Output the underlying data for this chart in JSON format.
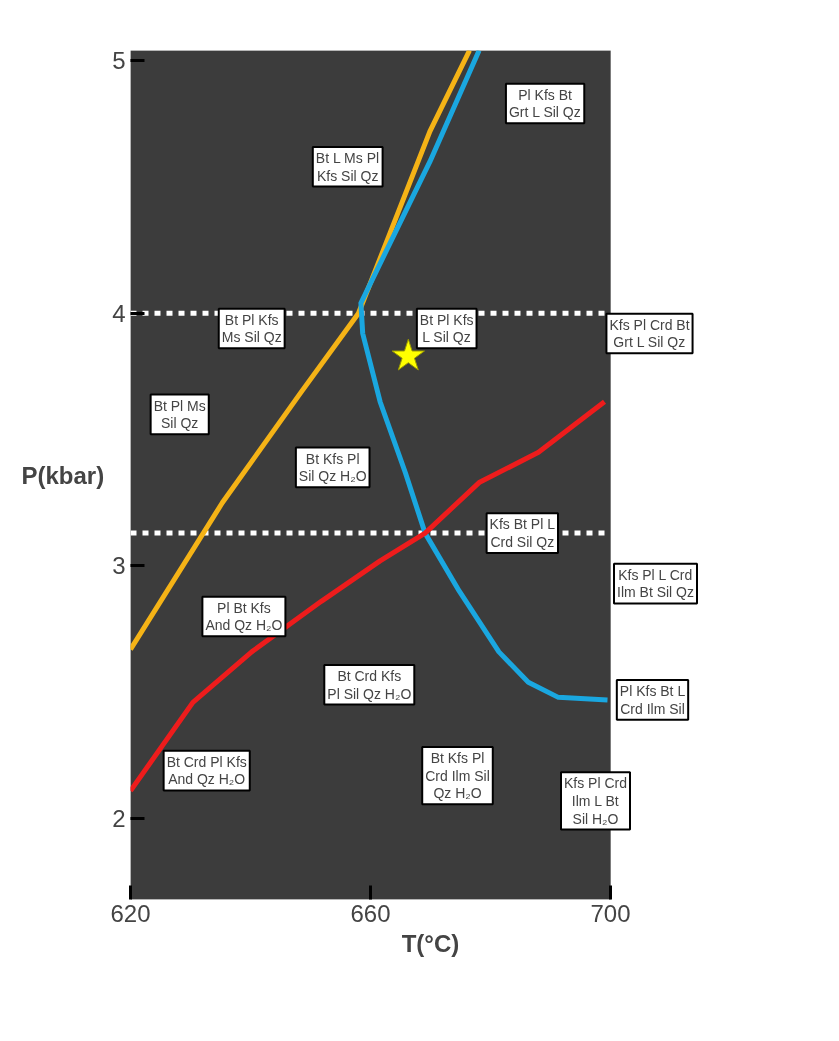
{
  "chart_data": {
    "type": "line",
    "xlabel": "T(°C)",
    "ylabel": "P(kbar)",
    "xlim": [
      620,
      700
    ],
    "xticks": [
      620,
      660,
      700
    ],
    "ylim": [
      1.68,
      5.04
    ],
    "yticks": [
      2,
      3,
      4,
      5
    ],
    "grid": false,
    "line_style": "solid",
    "series": [
      {
        "color": "#f5b316",
        "x": [
          620,
          635.3,
          648.5,
          658,
          663.3,
          669.9,
          676.5
        ],
        "values": [
          2.67,
          3.25,
          3.69,
          4.0,
          4.32,
          4.72,
          5.04
        ]
      },
      {
        "color": "#1aa7e0",
        "x": [
          678.1,
          669.9,
          663.3,
          658.4,
          658.7,
          661.6,
          665.8,
          669.1,
          674.8,
          681.4,
          686.3,
          691.3,
          699.5
        ],
        "values": [
          5.04,
          4.6,
          4.28,
          4.04,
          3.92,
          3.65,
          3.37,
          3.13,
          2.9,
          2.66,
          2.54,
          2.48,
          2.47
        ]
      },
      {
        "color": "#ee1c1c",
        "x": [
          620,
          630.4,
          640.2,
          651.8,
          661.6,
          669.1,
          678.1,
          688,
          699
        ],
        "values": [
          2.11,
          2.46,
          2.66,
          2.86,
          3.02,
          3.13,
          3.33,
          3.45,
          3.65
        ]
      },
      {
        "type": "scatter",
        "marker": "star",
        "color": "#ffff00",
        "x": [
          666.3
        ],
        "values": [
          3.83
        ]
      }
    ],
    "ref_lines": [
      {
        "axis": "y",
        "value": 4,
        "color": "#ffffff",
        "line_style": "dashed"
      },
      {
        "axis": "y",
        "value": 3.13,
        "color": "#ffffff",
        "line_style": "dashed"
      }
    ],
    "annotations": [
      "Pl Kfs Bt\nGrt L Sil Qz",
      "Bt L Ms Pl\nKfs Sil Qz",
      "Bt Pl Kfs\nMs Sil Qz",
      "Bt Pl Kfs\nL Sil Qz",
      "Kfs Pl Crd Bt\nGrt L Sil Qz",
      "Bt Pl Ms\nSil Qz",
      "Bt Kfs Pl\nSil Qz H₂O",
      "Kfs Bt Pl L\nCrd Sil Qz",
      "Kfs Pl L Crd\nIlm Bt Sil Qz",
      "Pl Bt Kfs\nAnd Qz H₂O",
      "Bt Crd Kfs\nPl Sil Qz H₂O",
      "Pl Kfs Bt L\nCrd Ilm Sil",
      "Bt Crd Pl Kfs\nAnd Qz H₂O",
      "Bt Kfs Pl\nCrd Ilm Sil\nQz H₂O",
      "Kfs Pl Crd\nIlm L Bt\nSil H₂O"
    ]
  }
}
